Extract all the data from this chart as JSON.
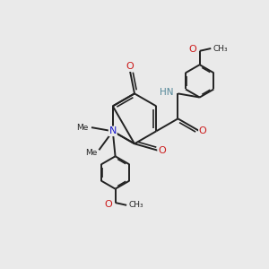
{
  "bg_color": "#eaeaea",
  "bond_color": "#222222",
  "bond_width": 1.4,
  "N_color": "#1a1acc",
  "O_color": "#cc1a1a",
  "H_color": "#558899",
  "font_size_atom": 8.0,
  "xlim": [
    0,
    10
  ],
  "ylim": [
    0,
    10
  ],
  "BL": 0.95
}
